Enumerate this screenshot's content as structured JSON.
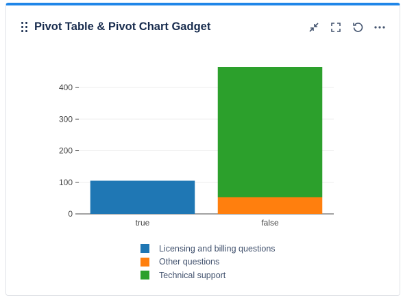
{
  "gadget": {
    "title": "Pivot Table & Pivot Chart Gadget",
    "actions": [
      {
        "name": "minimize-icon"
      },
      {
        "name": "fullscreen-icon"
      },
      {
        "name": "refresh-icon"
      },
      {
        "name": "more-options-icon"
      }
    ]
  },
  "colors": {
    "accent": "#1f86e8",
    "licensing": "#1f77b4",
    "other": "#ff7f0e",
    "technical": "#2ca02c"
  },
  "chart_data": {
    "type": "bar",
    "stacked": true,
    "categories": [
      "true",
      "false"
    ],
    "series": [
      {
        "name": "Licensing and billing questions",
        "values": [
          105,
          0
        ],
        "color": "#1f77b4"
      },
      {
        "name": "Other questions",
        "values": [
          0,
          53
        ],
        "color": "#ff7f0e"
      },
      {
        "name": "Technical support",
        "values": [
          0,
          412
        ],
        "color": "#2ca02c"
      }
    ],
    "yticks": [
      0,
      100,
      200,
      300,
      400
    ],
    "ylim": [
      0,
      465
    ],
    "grid": true,
    "legend_position": "bottom"
  }
}
